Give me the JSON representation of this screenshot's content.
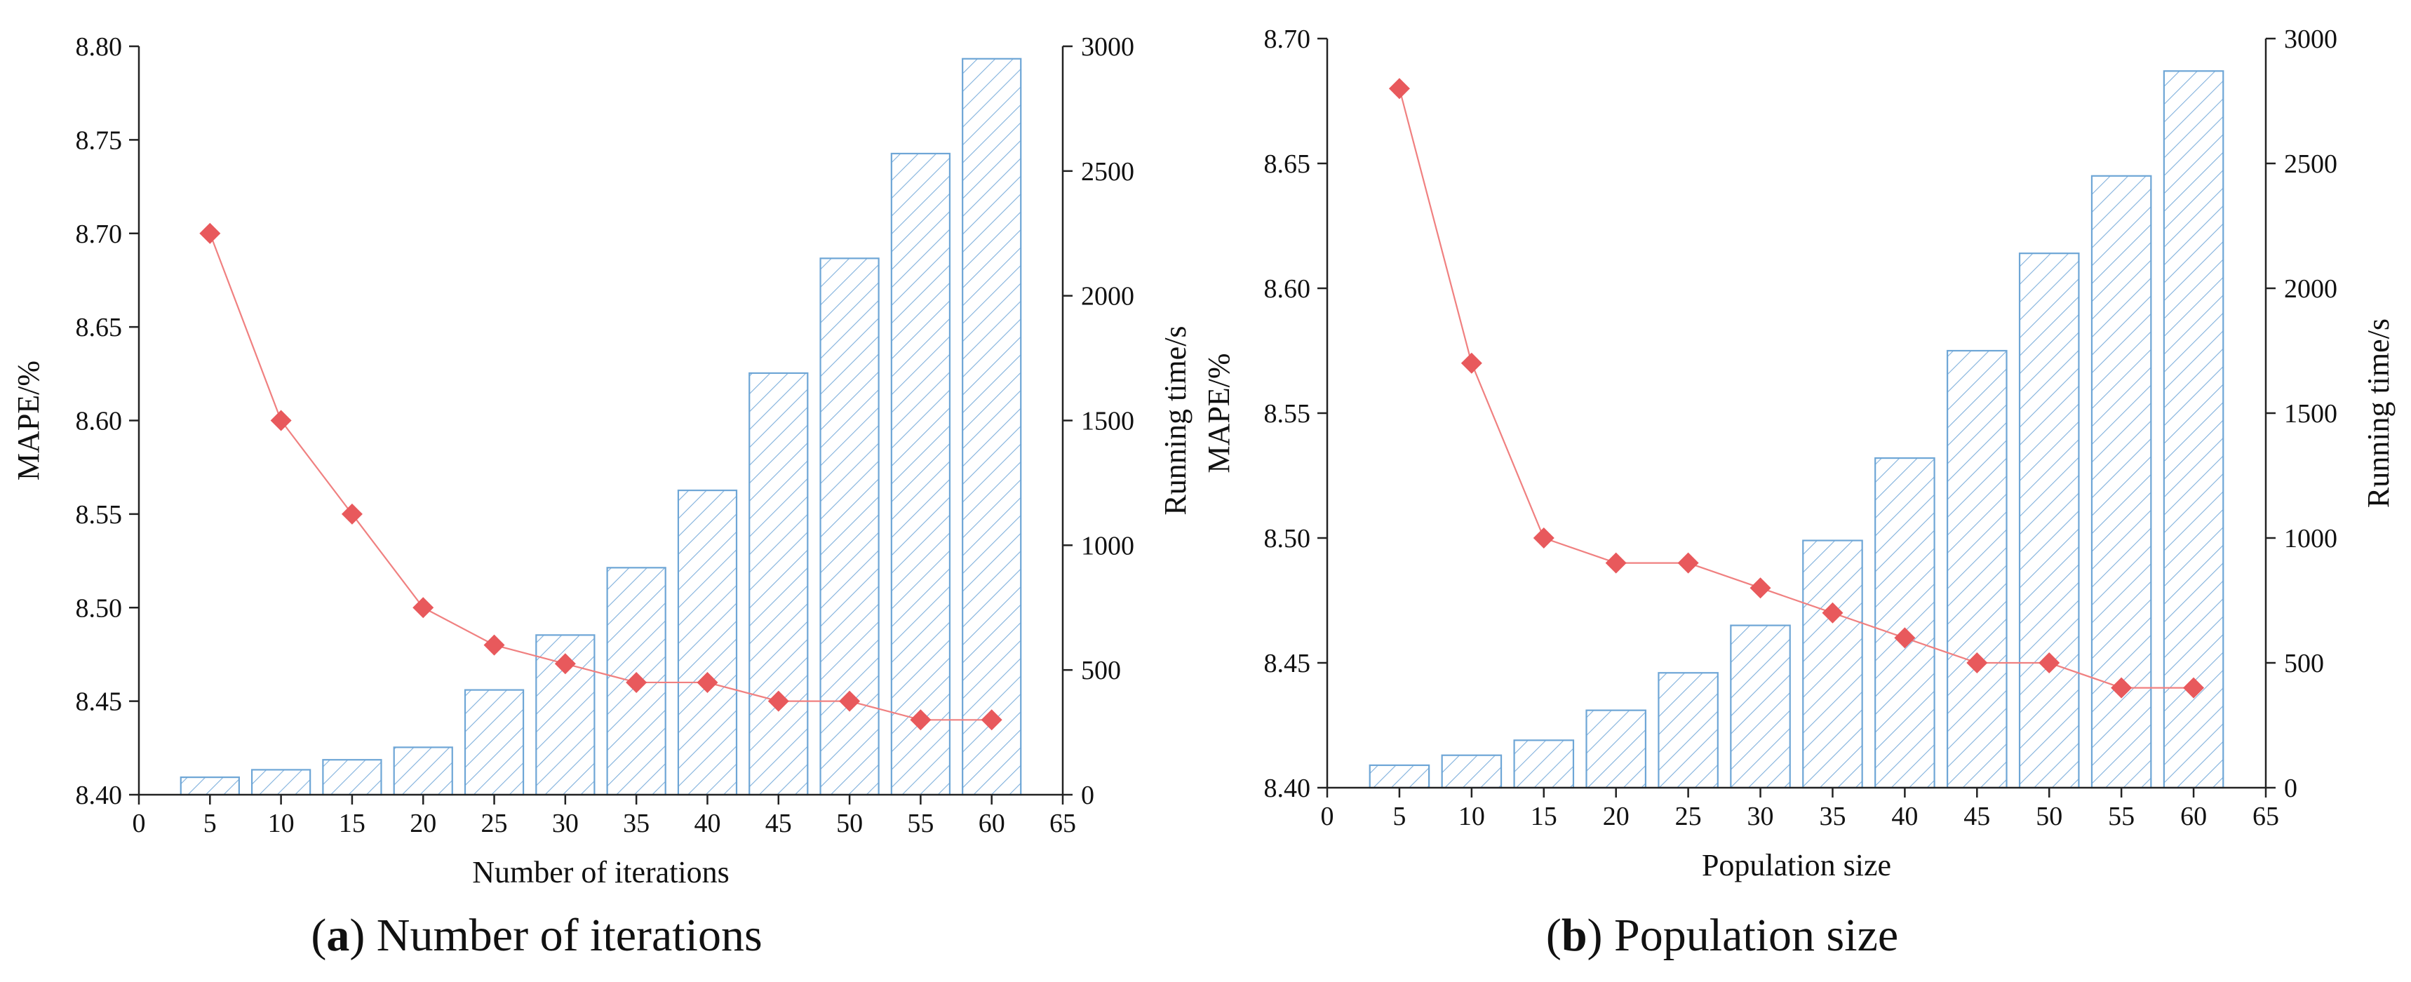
{
  "chart_data": [
    {
      "type": "bar+line",
      "caption_letter": "a",
      "caption_text": "Number of iterations",
      "xlabel": "Number of iterations",
      "ylabel_left": "MAPE/%",
      "ylabel_right": "Running time/s",
      "xlim": [
        0,
        65
      ],
      "x_ticks": [
        0,
        5,
        10,
        15,
        20,
        25,
        30,
        35,
        40,
        45,
        50,
        55,
        60,
        65
      ],
      "ylim_left": [
        8.4,
        8.8
      ],
      "y_ticks_left": [
        "8.40",
        "8.45",
        "8.50",
        "8.55",
        "8.60",
        "8.65",
        "8.70",
        "8.75",
        "8.80"
      ],
      "ylim_right": [
        0,
        3000
      ],
      "y_ticks_right": [
        "0",
        "500",
        "1000",
        "1500",
        "2000",
        "2500",
        "3000"
      ],
      "x": [
        5,
        10,
        15,
        20,
        25,
        30,
        35,
        40,
        45,
        50,
        55,
        60
      ],
      "series": [
        {
          "name": "Running time/s",
          "kind": "bar",
          "axis": "right",
          "values": [
            70,
            100,
            140,
            190,
            420,
            640,
            910,
            1220,
            1690,
            2150,
            2570,
            2950
          ]
        },
        {
          "name": "MAPE/%",
          "kind": "line",
          "axis": "left",
          "values": [
            8.7,
            8.6,
            8.55,
            8.5,
            8.48,
            8.47,
            8.46,
            8.46,
            8.45,
            8.45,
            8.44,
            8.44
          ]
        }
      ]
    },
    {
      "type": "bar+line",
      "caption_letter": "b",
      "caption_text": "Population size",
      "xlabel": "Population size",
      "ylabel_left": "MAPE/%",
      "ylabel_right": "Running time/s",
      "xlim": [
        0,
        65
      ],
      "x_ticks": [
        0,
        5,
        10,
        15,
        20,
        25,
        30,
        35,
        40,
        45,
        50,
        55,
        60,
        65
      ],
      "ylim_left": [
        8.4,
        8.7
      ],
      "y_ticks_left": [
        "8.40",
        "8.45",
        "8.50",
        "8.55",
        "8.60",
        "8.65",
        "8.70"
      ],
      "ylim_right": [
        0,
        3000
      ],
      "y_ticks_right": [
        "0",
        "500",
        "1000",
        "1500",
        "2000",
        "2500",
        "3000"
      ],
      "x": [
        5,
        10,
        15,
        20,
        25,
        30,
        35,
        40,
        45,
        50,
        55,
        60
      ],
      "series": [
        {
          "name": "Running time/s",
          "kind": "bar",
          "axis": "right",
          "values": [
            90,
            130,
            190,
            310,
            460,
            650,
            990,
            1320,
            1750,
            2140,
            2450,
            2870
          ]
        },
        {
          "name": "MAPE/%",
          "kind": "line",
          "axis": "left",
          "values": [
            8.68,
            8.57,
            8.5,
            8.49,
            8.49,
            8.48,
            8.47,
            8.46,
            8.45,
            8.45,
            8.44,
            8.44
          ]
        }
      ]
    }
  ],
  "colors": {
    "bar_stroke": "#6ea6d6",
    "bar_hatch": "#7fb0dc",
    "line": "#f08080",
    "marker": "#e8595c",
    "axis": "#222222"
  }
}
